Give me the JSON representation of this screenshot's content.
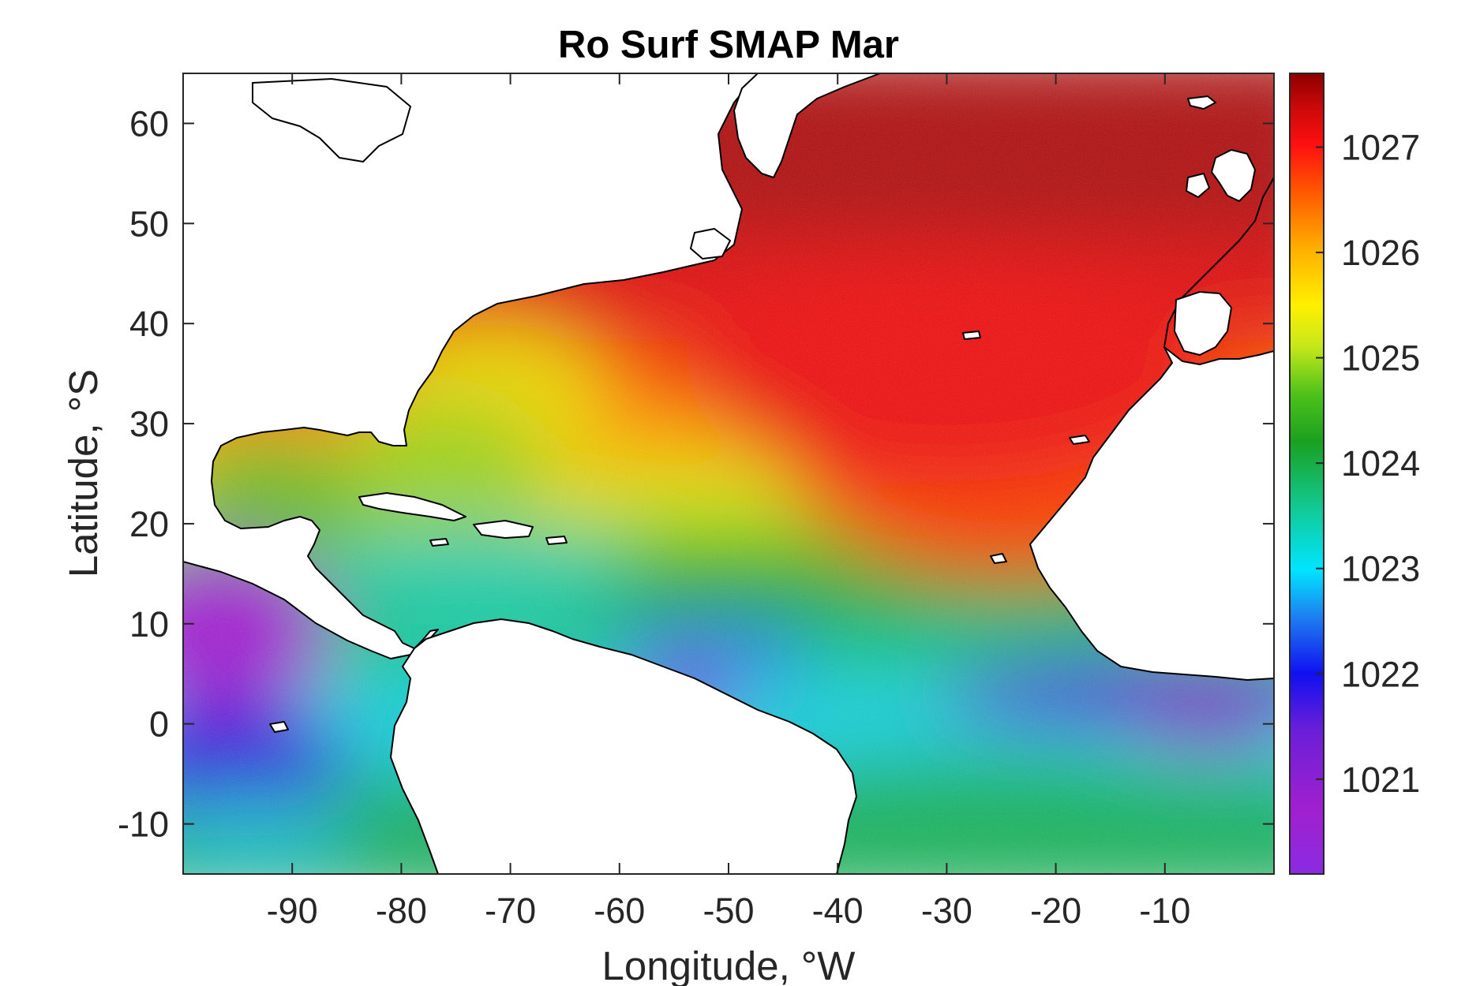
{
  "chart_data": {
    "type": "heatmap",
    "title": "Ro Surf SMAP Mar",
    "xlabel": "Longitude, °W",
    "ylabel": "Latitude, °S",
    "xlim": [
      -100,
      0
    ],
    "ylim": [
      -15,
      65
    ],
    "x_ticks": [
      -90,
      -80,
      -70,
      -60,
      -50,
      -40,
      -30,
      -20,
      -10
    ],
    "y_ticks": [
      -10,
      0,
      10,
      20,
      30,
      40,
      50,
      60
    ],
    "colorbar": {
      "min": 1020.1,
      "max": 1027.7,
      "ticks": [
        1021,
        1022,
        1023,
        1024,
        1025,
        1026,
        1027
      ],
      "colormap": "rainbow (violet-blue-cyan-green-yellow-orange-red-darkred)"
    },
    "field_description": "Surface density over the North Atlantic; highest (~1027.5) north of 45°N, decreasing southward to ~1024-1025 in the subtropics and ~1021-1022 near the equator off West Africa and in the eastern Pacific; land masked white.",
    "colors": {
      "land": "#ffffff",
      "coastline": "#000000"
    }
  }
}
